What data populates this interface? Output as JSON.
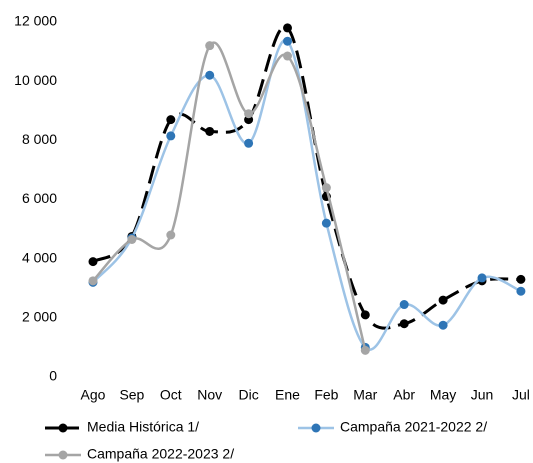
{
  "chart_data": {
    "type": "line",
    "categories": [
      "Ago",
      "Sep",
      "Oct",
      "Nov",
      "Dic",
      "Ene",
      "Feb",
      "Mar",
      "Abr",
      "May",
      "Jun",
      "Jul"
    ],
    "series": [
      {
        "name": "Media Histórica 1/",
        "color": "#000000",
        "dash": true,
        "values": [
          3900,
          4750,
          8700,
          8300,
          8700,
          11800,
          6100,
          2100,
          1800,
          2600,
          3250,
          3300
        ]
      },
      {
        "name": "Campaña 2021-2022 2/",
        "color": "#2e75b6",
        "line_color": "#9dc3e6",
        "dash": false,
        "values": [
          3200,
          4700,
          8150,
          10200,
          7900,
          11350,
          5200,
          1000,
          2450,
          1750,
          3350,
          2900
        ]
      },
      {
        "name": "Campaña 2022-2023 2/",
        "color": "#a5a5a5",
        "dash": false,
        "values": [
          3250,
          4650,
          4800,
          11200,
          8900,
          10850,
          6400,
          900,
          null,
          null,
          null,
          null
        ]
      }
    ],
    "ylim": [
      0,
      12000
    ],
    "yticks": [
      0,
      {
        "value": 2000,
        "label": "2 000"
      },
      {
        "value": 4000,
        "label": "4 000"
      },
      {
        "value": 6000,
        "label": "6 000"
      },
      {
        "value": 8000,
        "label": "8 000"
      },
      {
        "value": 10000,
        "label": "10 000"
      },
      {
        "value": 12000,
        "label": "12 000"
      }
    ],
    "smooth": true
  }
}
